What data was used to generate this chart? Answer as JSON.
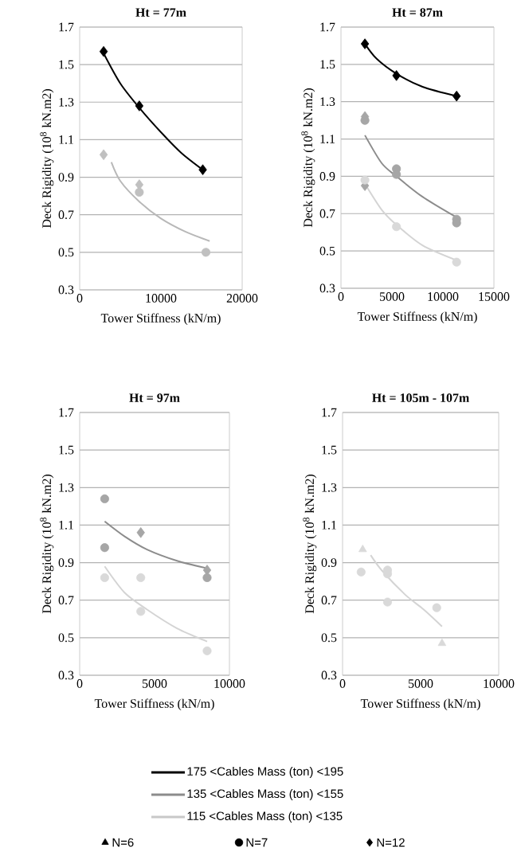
{
  "chart_data": [
    {
      "type": "scatter",
      "title": "Ht = 77m",
      "xlabel": "Tower Stiffness (kN/m)",
      "ylabel": "Deck Rigidity (10$^{8}$ kN.m2)",
      "xlim": [
        0,
        20000
      ],
      "xticks": [
        0,
        10000,
        20000
      ],
      "ylim": [
        0.3,
        1.7
      ],
      "yticks": [
        0.3,
        0.5,
        0.7,
        0.9,
        1.1,
        1.3,
        1.5,
        1.7
      ],
      "grid": "y",
      "series": [
        {
          "type": "line",
          "color": "#000000",
          "x": [
            2950,
            5000,
            7340,
            10000,
            12500,
            15150
          ],
          "values": [
            1.56,
            1.4,
            1.27,
            1.14,
            1.03,
            0.94
          ]
        },
        {
          "type": "line",
          "color": "#b8b8b8",
          "x": [
            3900,
            5000,
            7340,
            10000,
            13000,
            16000
          ],
          "values": [
            0.98,
            0.88,
            0.77,
            0.68,
            0.61,
            0.56
          ]
        },
        {
          "type": "scatter",
          "marker": "diamond",
          "color": "#000000",
          "x": [
            2950,
            7340,
            15150
          ],
          "values": [
            1.57,
            1.28,
            0.94
          ]
        },
        {
          "type": "scatter",
          "marker": "diamond",
          "color": "#c0c0c0",
          "x": [
            2950,
            7340
          ],
          "values": [
            1.02,
            0.86
          ]
        },
        {
          "type": "scatter",
          "marker": "circle",
          "color": "#c0c0c0",
          "x": [
            7340,
            15540
          ],
          "values": [
            0.82,
            0.5
          ]
        }
      ]
    },
    {
      "type": "scatter",
      "title": "Ht = 87m",
      "xlabel": "Tower Stiffness (kN/m)",
      "ylabel": "Deck Rigidity (10$^{8}$ kN.m2)",
      "xlim": [
        0,
        15000
      ],
      "xticks": [
        0,
        5000,
        10000,
        15000
      ],
      "ylim": [
        0.3,
        1.7
      ],
      "yticks": [
        0.3,
        0.5,
        0.7,
        0.9,
        1.1,
        1.3,
        1.5,
        1.7
      ],
      "grid": "y",
      "series": [
        {
          "type": "line",
          "color": "#000000",
          "x": [
            2350,
            3500,
            5440,
            8000,
            11340
          ],
          "values": [
            1.61,
            1.53,
            1.45,
            1.38,
            1.33
          ]
        },
        {
          "type": "line",
          "color": "#8c8c8c",
          "x": [
            2350,
            4000,
            5440,
            8000,
            11340
          ],
          "values": [
            1.12,
            0.97,
            0.9,
            0.79,
            0.68
          ]
        },
        {
          "type": "line",
          "color": "#d4d4d4",
          "x": [
            2350,
            4000,
            5440,
            8000,
            11340
          ],
          "values": [
            0.86,
            0.72,
            0.64,
            0.53,
            0.45
          ]
        },
        {
          "type": "scatter",
          "marker": "diamond",
          "color": "#000000",
          "x": [
            2350,
            5440,
            11340
          ],
          "values": [
            1.61,
            1.44,
            1.33
          ]
        },
        {
          "type": "scatter",
          "marker": "diamond",
          "color": "#a6a6a6",
          "x": [
            2350,
            2350
          ],
          "values": [
            1.22,
            0.85
          ]
        },
        {
          "type": "scatter",
          "marker": "circle",
          "color": "#a6a6a6",
          "x": [
            2350,
            5440,
            5440,
            11340,
            11340
          ],
          "values": [
            1.2,
            0.94,
            0.91,
            0.67,
            0.65
          ]
        },
        {
          "type": "scatter",
          "marker": "circle",
          "color": "#d9d9d9",
          "x": [
            2350,
            5440,
            11340
          ],
          "values": [
            0.88,
            0.63,
            0.44
          ]
        }
      ]
    },
    {
      "type": "scatter",
      "title": "Ht = 97m",
      "xlabel": "Tower Stiffness (kN/m)",
      "ylabel": "Deck Rigidity (10$^{8}$ kN.m2)",
      "xlim": [
        0,
        10000
      ],
      "xticks": [
        0,
        5000,
        10000
      ],
      "ylim": [
        0.3,
        1.7
      ],
      "yticks": [
        0.3,
        0.5,
        0.7,
        0.9,
        1.1,
        1.3,
        1.5,
        1.7
      ],
      "grid": "y",
      "series": [
        {
          "type": "line",
          "color": "#8c8c8c",
          "x": [
            1670,
            3000,
            4500,
            6500,
            8510
          ],
          "values": [
            1.12,
            1.04,
            0.97,
            0.91,
            0.87
          ]
        },
        {
          "type": "line",
          "color": "#d4d4d4",
          "x": [
            1670,
            3000,
            4500,
            6500,
            8510
          ],
          "values": [
            0.88,
            0.74,
            0.65,
            0.55,
            0.48
          ]
        },
        {
          "type": "scatter",
          "marker": "circle",
          "color": "#a6a6a6",
          "x": [
            1670,
            1670,
            8510
          ],
          "values": [
            1.24,
            0.98,
            0.82
          ]
        },
        {
          "type": "scatter",
          "marker": "diamond",
          "color": "#a6a6a6",
          "x": [
            4080,
            8510
          ],
          "values": [
            1.06,
            0.86
          ]
        },
        {
          "type": "scatter",
          "marker": "circle",
          "color": "#d9d9d9",
          "x": [
            1670,
            4080,
            4080,
            8510
          ],
          "values": [
            0.82,
            0.82,
            0.64,
            0.43
          ]
        }
      ]
    },
    {
      "type": "scatter",
      "title": "Ht = 105m - 107m",
      "xlabel": "Tower Stiffness (kN/m)",
      "ylabel": "Deck Rigidity (10$^{8}$ kN.m2)",
      "xlim": [
        0,
        10000
      ],
      "xticks": [
        0,
        5000,
        10000
      ],
      "ylim": [
        0.3,
        1.7
      ],
      "yticks": [
        0.3,
        0.5,
        0.7,
        0.9,
        1.1,
        1.3,
        1.5,
        1.7
      ],
      "grid": "y",
      "series": [
        {
          "type": "line",
          "color": "#d4d4d4",
          "x": [
            1800,
            2500,
            4000,
            5200,
            6370
          ],
          "values": [
            0.94,
            0.86,
            0.73,
            0.65,
            0.56
          ]
        },
        {
          "type": "scatter",
          "marker": "triangle",
          "color": "#d9d9d9",
          "x": [
            1290,
            6370
          ],
          "values": [
            0.97,
            0.47
          ]
        },
        {
          "type": "scatter",
          "marker": "circle",
          "color": "#d9d9d9",
          "x": [
            1190,
            2880,
            2880,
            2880,
            6030
          ],
          "values": [
            0.85,
            0.86,
            0.84,
            0.69,
            0.66
          ]
        }
      ]
    },
    {
      "type": "other",
      "series": [
        {
          "name": "175 <Cables Mass (ton) <195",
          "color": "#000000",
          "line_style": "solid"
        },
        {
          "name": "135 <Cables Mass (ton) <155",
          "color": "#8c8c8c",
          "line_style": "solid"
        },
        {
          "name": "115 <Cables Mass (ton) <135",
          "color": "#c8c8c8",
          "line_style": "solid"
        },
        {
          "name": "N=6",
          "color": "#000000",
          "marker": "triangle"
        },
        {
          "name": "N=7",
          "color": "#000000",
          "marker": "circle"
        },
        {
          "name": "N=12",
          "color": "#000000",
          "marker": "diamond"
        }
      ]
    }
  ]
}
